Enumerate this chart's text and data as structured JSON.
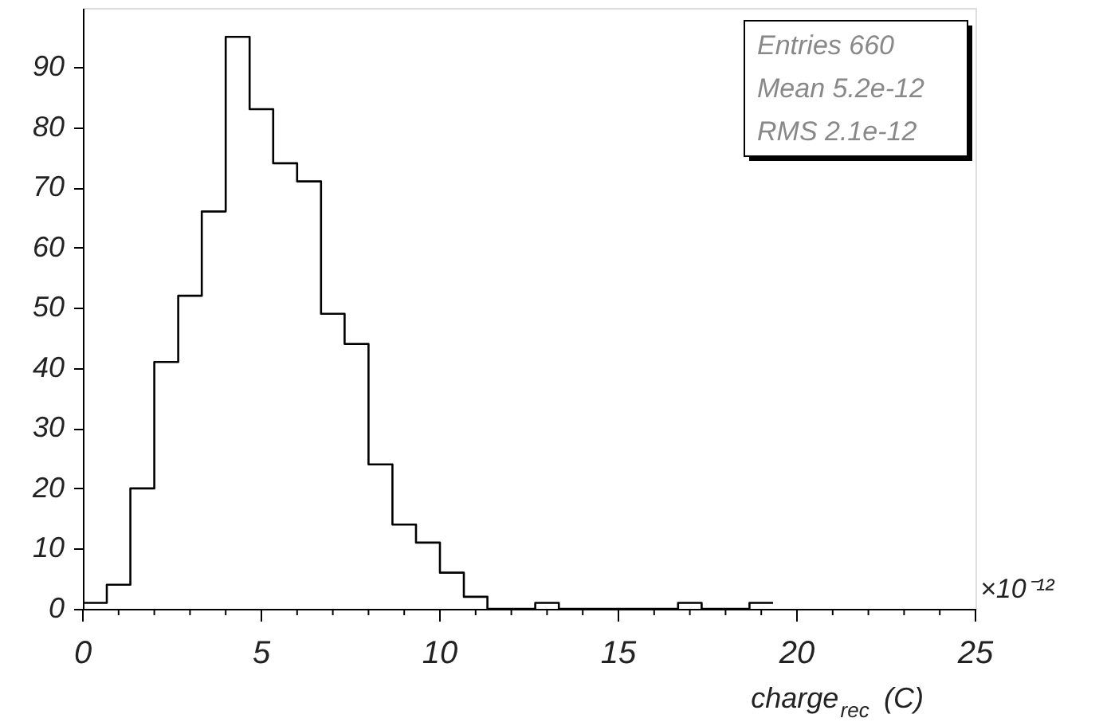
{
  "chart_data": {
    "type": "histogram",
    "bins": [
      0,
      0.67,
      1.33,
      2,
      2.67,
      3.33,
      4,
      4.67,
      5.33,
      6,
      6.67,
      7.33,
      8,
      8.67,
      9.33,
      10,
      10.67,
      11.33,
      12,
      12.67,
      13.33,
      14,
      14.67,
      15.33,
      16,
      16.67,
      17.33,
      18,
      18.67,
      19.33
    ],
    "values": [
      1,
      4,
      20,
      41,
      52,
      66,
      95,
      83,
      74,
      71,
      49,
      44,
      24,
      14,
      11,
      6,
      2,
      0,
      0,
      1,
      0,
      0,
      0,
      0,
      0,
      1,
      0,
      0,
      1
    ],
    "color": "#000000",
    "xlabel": "charge$_{rec}$ (C)",
    "xlim": [
      0,
      25
    ],
    "xticks": [
      0,
      {
        "value": 1,
        "label": null
      },
      {
        "value": 2,
        "label": null
      },
      {
        "value": 3,
        "label": null
      },
      {
        "value": 4,
        "label": null
      },
      5,
      {
        "value": 6,
        "label": null
      },
      {
        "value": 7,
        "label": null
      },
      {
        "value": 8,
        "label": null
      },
      {
        "value": 9,
        "label": null
      },
      10,
      {
        "value": 11,
        "label": null
      },
      {
        "value": 12,
        "label": null
      },
      {
        "value": 13,
        "label": null
      },
      {
        "value": 14,
        "label": null
      },
      15,
      {
        "value": 16,
        "label": null
      },
      {
        "value": 17,
        "label": null
      },
      {
        "value": 18,
        "label": null
      },
      {
        "value": 19,
        "label": null
      },
      20,
      {
        "value": 21,
        "label": null
      },
      {
        "value": 22,
        "label": null
      },
      {
        "value": 23,
        "label": null
      },
      {
        "value": 24,
        "label": null
      },
      25
    ],
    "ylim": [
      0,
      99.8
    ],
    "yticks": [
      0,
      10,
      20,
      30,
      40,
      50,
      60,
      70,
      80,
      90
    ],
    "grid": false,
    "annotations": [
      "Entries  660",
      "Mean   5.2e-12",
      "RMS    2.1e-12",
      "×10⁻¹²"
    ]
  }
}
